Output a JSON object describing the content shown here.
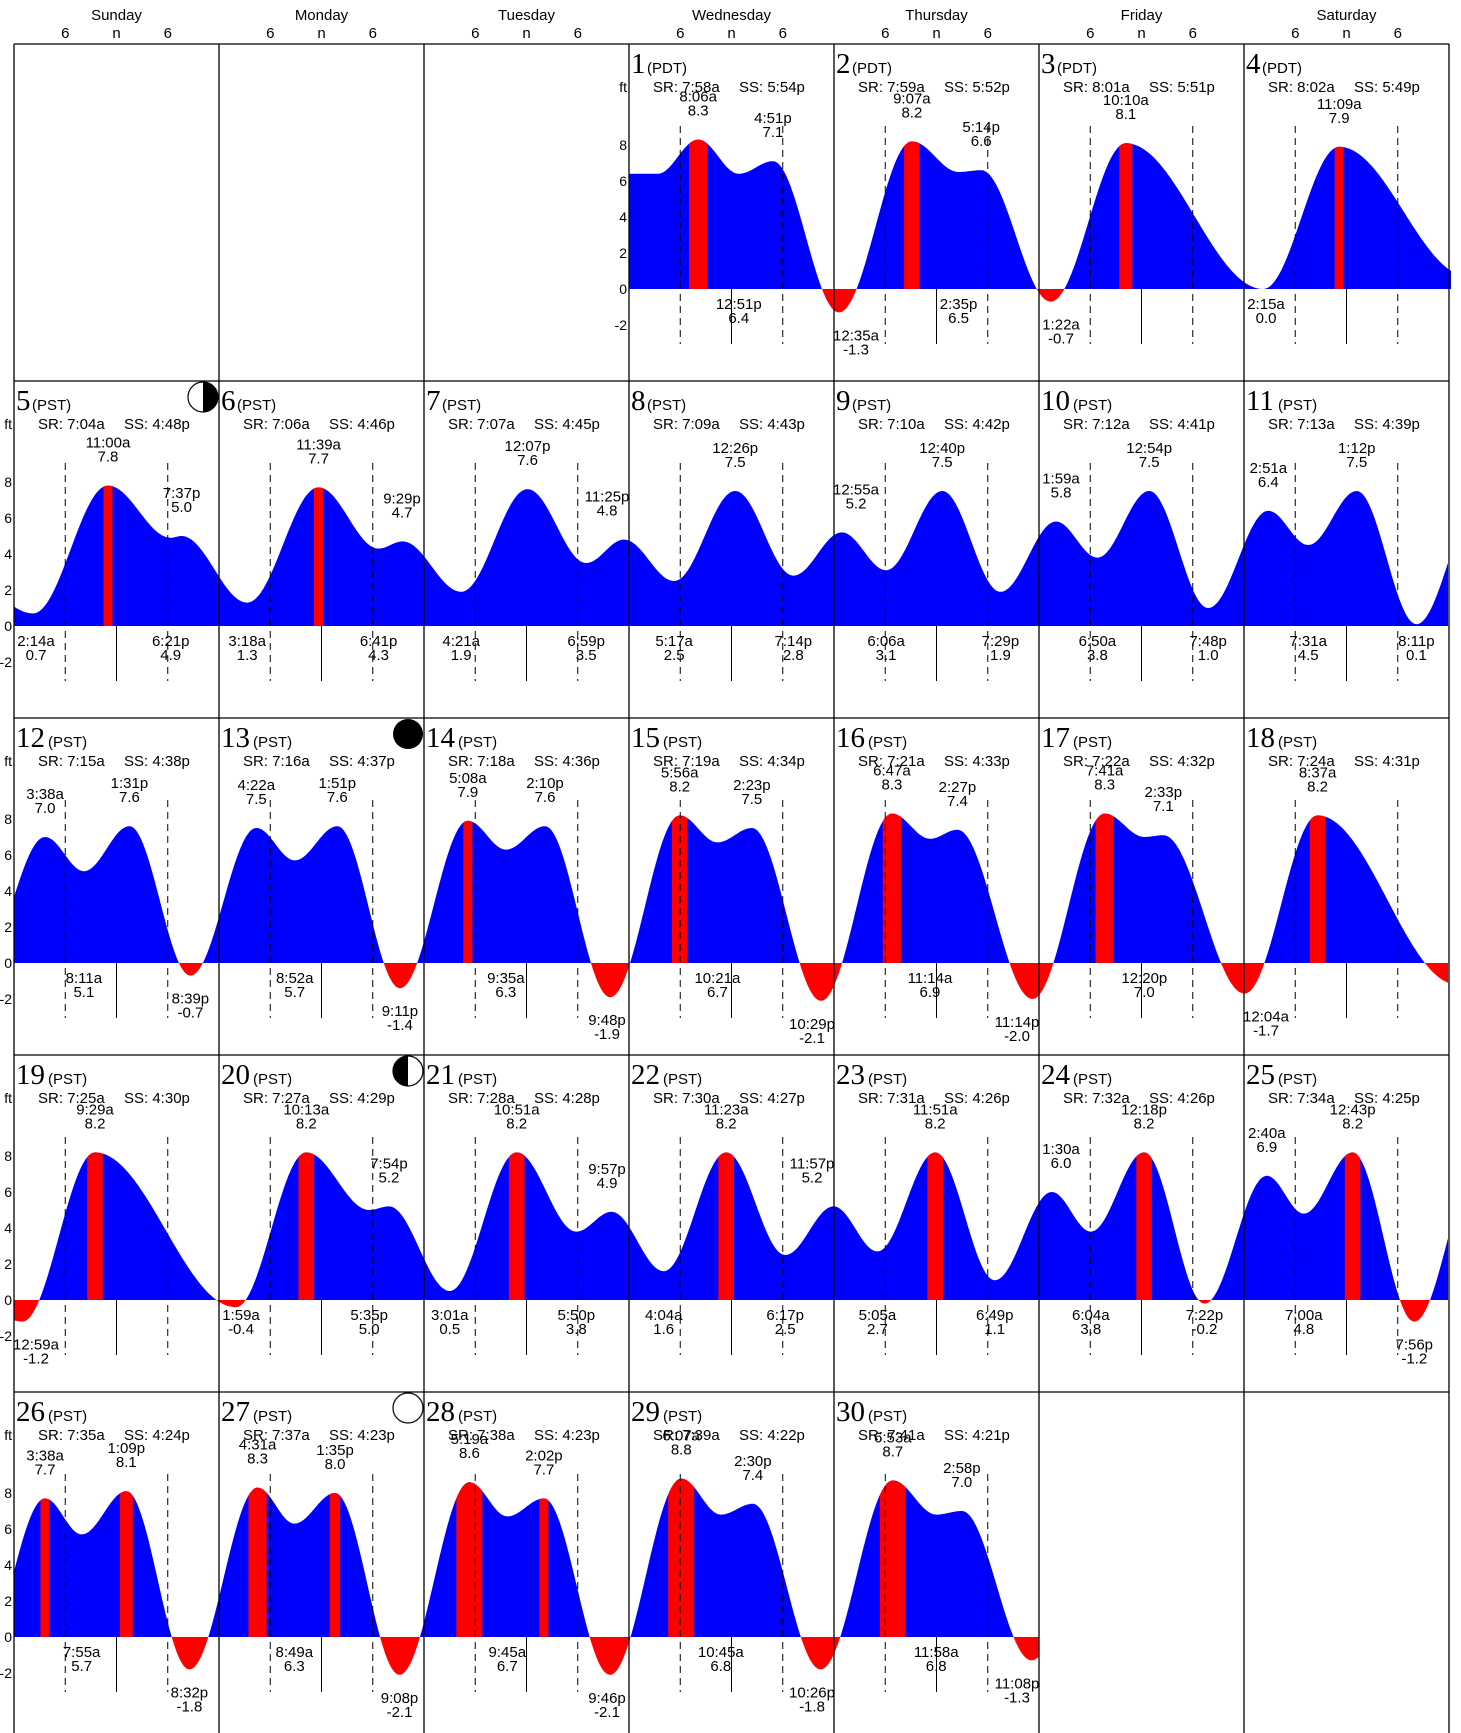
{
  "page": {
    "background": "#ffffff"
  },
  "colors": {
    "high_band": "#ff0000",
    "tide_fill": "#0000ff",
    "negative_fill": "#ff0000",
    "grid": "#000000"
  },
  "header": {
    "days": [
      "Sunday",
      "Monday",
      "Tuesday",
      "Wednesday",
      "Thursday",
      "Friday",
      "Saturday"
    ],
    "tick_labels": [
      "6",
      "n",
      "6"
    ]
  },
  "axis": {
    "unit": "ft",
    "ticks": [
      "8",
      "6",
      "4",
      "2",
      "0",
      "-2"
    ]
  },
  "chart_data": {
    "type": "area",
    "ylim": [
      -2.5,
      9
    ],
    "x_unit": "hours",
    "y_unit": "ft",
    "first_weekday_index": 3,
    "days": [
      {
        "day": "1",
        "tz": "(PDT)",
        "sr": "SR: 7:58a",
        "ss": "SS: 5:54p",
        "highs": [
          {
            "time": "8:06a",
            "height": "8.3"
          },
          {
            "time": "4:51p",
            "height": "7.1"
          }
        ],
        "lows": [
          {
            "time": "12:51p",
            "height": "6.4"
          }
        ]
      },
      {
        "day": "2",
        "tz": "(PDT)",
        "sr": "SR: 7:59a",
        "ss": "SS: 5:52p",
        "highs": [
          {
            "time": "9:07a",
            "height": "8.2"
          },
          {
            "time": "5:14p",
            "height": "6.6"
          }
        ],
        "lows": [
          {
            "time": "12:35a",
            "height": "-1.3"
          },
          {
            "time": "2:35p",
            "height": "6.5"
          }
        ]
      },
      {
        "day": "3",
        "tz": "(PDT)",
        "sr": "SR: 8:01a",
        "ss": "SS: 5:51p",
        "highs": [
          {
            "time": "10:10a",
            "height": "8.1"
          }
        ],
        "lows": [
          {
            "time": "1:22a",
            "height": "-0.7"
          }
        ]
      },
      {
        "day": "4",
        "tz": "(PDT)",
        "sr": "SR: 8:02a",
        "ss": "SS: 5:49p",
        "highs": [
          {
            "time": "11:09a",
            "height": "7.9"
          }
        ],
        "lows": [
          {
            "time": "2:15a",
            "height": "0.0"
          }
        ]
      },
      {
        "day": "5",
        "tz": "(PST)",
        "sr": "SR: 7:04a",
        "ss": "SS: 4:48p",
        "moon": "first-quarter",
        "highs": [
          {
            "time": "11:00a",
            "height": "7.8"
          },
          {
            "time": "7:37p",
            "height": "5.0"
          }
        ],
        "lows": [
          {
            "time": "2:14a",
            "height": "0.7"
          },
          {
            "time": "6:21p",
            "height": "4.9"
          }
        ]
      },
      {
        "day": "6",
        "tz": "(PST)",
        "sr": "SR: 7:06a",
        "ss": "SS: 4:46p",
        "highs": [
          {
            "time": "11:39a",
            "height": "7.7"
          },
          {
            "time": "9:29p",
            "height": "4.7"
          }
        ],
        "lows": [
          {
            "time": "3:18a",
            "height": "1.3"
          },
          {
            "time": "6:41p",
            "height": "4.3"
          }
        ]
      },
      {
        "day": "7",
        "tz": "(PST)",
        "sr": "SR: 7:07a",
        "ss": "SS: 4:45p",
        "highs": [
          {
            "time": "12:07p",
            "height": "7.6"
          },
          {
            "time": "11:25p",
            "height": "4.8"
          }
        ],
        "lows": [
          {
            "time": "4:21a",
            "height": "1.9"
          },
          {
            "time": "6:59p",
            "height": "3.5"
          }
        ]
      },
      {
        "day": "8",
        "tz": "(PST)",
        "sr": "SR: 7:09a",
        "ss": "SS: 4:43p",
        "highs": [
          {
            "time": "12:26p",
            "height": "7.5"
          }
        ],
        "lows": [
          {
            "time": "5:17a",
            "height": "2.5"
          },
          {
            "time": "7:14p",
            "height": "2.8"
          }
        ]
      },
      {
        "day": "9",
        "tz": "(PST)",
        "sr": "SR: 7:10a",
        "ss": "SS: 4:42p",
        "highs": [
          {
            "time": "12:55a",
            "height": "5.2"
          },
          {
            "time": "12:40p",
            "height": "7.5"
          }
        ],
        "lows": [
          {
            "time": "6:06a",
            "height": "3.1"
          },
          {
            "time": "7:29p",
            "height": "1.9"
          }
        ]
      },
      {
        "day": "10",
        "tz": "(PST)",
        "sr": "SR: 7:12a",
        "ss": "SS: 4:41p",
        "highs": [
          {
            "time": "1:59a",
            "height": "5.8"
          },
          {
            "time": "12:54p",
            "height": "7.5"
          }
        ],
        "lows": [
          {
            "time": "6:50a",
            "height": "3.8"
          },
          {
            "time": "7:48p",
            "height": "1.0"
          }
        ]
      },
      {
        "day": "11",
        "tz": "(PST)",
        "sr": "SR: 7:13a",
        "ss": "SS: 4:39p",
        "highs": [
          {
            "time": "2:51a",
            "height": "6.4"
          },
          {
            "time": "1:12p",
            "height": "7.5"
          }
        ],
        "lows": [
          {
            "time": "7:31a",
            "height": "4.5"
          },
          {
            "time": "8:11p",
            "height": "0.1"
          }
        ]
      },
      {
        "day": "12",
        "tz": "(PST)",
        "sr": "SR: 7:15a",
        "ss": "SS: 4:38p",
        "highs": [
          {
            "time": "3:38a",
            "height": "7.0"
          },
          {
            "time": "1:31p",
            "height": "7.6"
          }
        ],
        "lows": [
          {
            "time": "8:11a",
            "height": "5.1"
          },
          {
            "time": "8:39p",
            "height": "-0.7"
          }
        ]
      },
      {
        "day": "13",
        "tz": "(PST)",
        "sr": "SR: 7:16a",
        "ss": "SS: 4:37p",
        "moon": "new",
        "highs": [
          {
            "time": "4:22a",
            "height": "7.5"
          },
          {
            "time": "1:51p",
            "height": "7.6"
          }
        ],
        "lows": [
          {
            "time": "8:52a",
            "height": "5.7"
          },
          {
            "time": "9:11p",
            "height": "-1.4"
          }
        ]
      },
      {
        "day": "14",
        "tz": "(PST)",
        "sr": "SR: 7:18a",
        "ss": "SS: 4:36p",
        "highs": [
          {
            "time": "5:08a",
            "height": "7.9"
          },
          {
            "time": "2:10p",
            "height": "7.6"
          }
        ],
        "lows": [
          {
            "time": "9:35a",
            "height": "6.3"
          },
          {
            "time": "9:48p",
            "height": "-1.9"
          }
        ]
      },
      {
        "day": "15",
        "tz": "(PST)",
        "sr": "SR: 7:19a",
        "ss": "SS: 4:34p",
        "highs": [
          {
            "time": "5:56a",
            "height": "8.2"
          },
          {
            "time": "2:23p",
            "height": "7.5"
          }
        ],
        "lows": [
          {
            "time": "10:21a",
            "height": "6.7"
          },
          {
            "time": "10:29p",
            "height": "-2.1"
          }
        ]
      },
      {
        "day": "16",
        "tz": "(PST)",
        "sr": "SR: 7:21a",
        "ss": "SS: 4:33p",
        "highs": [
          {
            "time": "6:47a",
            "height": "8.3"
          },
          {
            "time": "2:27p",
            "height": "7.4"
          }
        ],
        "lows": [
          {
            "time": "11:14a",
            "height": "6.9"
          },
          {
            "time": "11:14p",
            "height": "-2.0"
          }
        ]
      },
      {
        "day": "17",
        "tz": "(PST)",
        "sr": "SR: 7:22a",
        "ss": "SS: 4:32p",
        "highs": [
          {
            "time": "7:41a",
            "height": "8.3"
          },
          {
            "time": "2:33p",
            "height": "7.1"
          }
        ],
        "lows": [
          {
            "time": "12:20p",
            "height": "7.0"
          }
        ]
      },
      {
        "day": "18",
        "tz": "(PST)",
        "sr": "SR: 7:24a",
        "ss": "SS: 4:31p",
        "highs": [
          {
            "time": "8:37a",
            "height": "8.2"
          }
        ],
        "lows": [
          {
            "time": "12:04a",
            "height": "-1.7"
          }
        ]
      },
      {
        "day": "19",
        "tz": "(PST)",
        "sr": "SR: 7:25a",
        "ss": "SS: 4:30p",
        "highs": [
          {
            "time": "9:29a",
            "height": "8.2"
          }
        ],
        "lows": [
          {
            "time": "12:59a",
            "height": "-1.2"
          }
        ]
      },
      {
        "day": "20",
        "tz": "(PST)",
        "sr": "SR: 7:27a",
        "ss": "SS: 4:29p",
        "moon": "last-quarter",
        "highs": [
          {
            "time": "10:13a",
            "height": "8.2"
          },
          {
            "time": "7:54p",
            "height": "5.2"
          }
        ],
        "lows": [
          {
            "time": "1:59a",
            "height": "-0.4"
          },
          {
            "time": "5:35p",
            "height": "5.0"
          }
        ]
      },
      {
        "day": "21",
        "tz": "(PST)",
        "sr": "SR: 7:28a",
        "ss": "SS: 4:28p",
        "highs": [
          {
            "time": "10:51a",
            "height": "8.2"
          },
          {
            "time": "9:57p",
            "height": "4.9"
          }
        ],
        "lows": [
          {
            "time": "3:01a",
            "height": "0.5"
          },
          {
            "time": "5:50p",
            "height": "3.8"
          }
        ]
      },
      {
        "day": "22",
        "tz": "(PST)",
        "sr": "SR: 7:30a",
        "ss": "SS: 4:27p",
        "highs": [
          {
            "time": "11:23a",
            "height": "8.2"
          },
          {
            "time": "11:57p",
            "height": "5.2"
          }
        ],
        "lows": [
          {
            "time": "4:04a",
            "height": "1.6"
          },
          {
            "time": "6:17p",
            "height": "2.5"
          }
        ]
      },
      {
        "day": "23",
        "tz": "(PST)",
        "sr": "SR: 7:31a",
        "ss": "SS: 4:26p",
        "highs": [
          {
            "time": "11:51a",
            "height": "8.2"
          }
        ],
        "lows": [
          {
            "time": "5:05a",
            "height": "2.7"
          },
          {
            "time": "6:49p",
            "height": "1.1"
          }
        ]
      },
      {
        "day": "24",
        "tz": "(PST)",
        "sr": "SR: 7:32a",
        "ss": "SS: 4:26p",
        "highs": [
          {
            "time": "1:30a",
            "height": "6.0"
          },
          {
            "time": "12:18p",
            "height": "8.2"
          }
        ],
        "lows": [
          {
            "time": "6:04a",
            "height": "3.8"
          },
          {
            "time": "7:22p",
            "height": "-0.2"
          }
        ]
      },
      {
        "day": "25",
        "tz": "(PST)",
        "sr": "SR: 7:34a",
        "ss": "SS: 4:25p",
        "highs": [
          {
            "time": "2:40a",
            "height": "6.9"
          },
          {
            "time": "12:43p",
            "height": "8.2"
          }
        ],
        "lows": [
          {
            "time": "7:00a",
            "height": "4.8"
          },
          {
            "time": "7:56p",
            "height": "-1.2"
          }
        ]
      },
      {
        "day": "26",
        "tz": "(PST)",
        "sr": "SR: 7:35a",
        "ss": "SS: 4:24p",
        "highs": [
          {
            "time": "3:38a",
            "height": "7.7"
          },
          {
            "time": "1:09p",
            "height": "8.1"
          }
        ],
        "lows": [
          {
            "time": "7:55a",
            "height": "5.7"
          },
          {
            "time": "8:32p",
            "height": "-1.8"
          }
        ]
      },
      {
        "day": "27",
        "tz": "(PST)",
        "sr": "SR: 7:37a",
        "ss": "SS: 4:23p",
        "moon": "full",
        "highs": [
          {
            "time": "4:31a",
            "height": "8.3"
          },
          {
            "time": "1:35p",
            "height": "8.0"
          }
        ],
        "lows": [
          {
            "time": "8:49a",
            "height": "6.3"
          },
          {
            "time": "9:08p",
            "height": "-2.1"
          }
        ]
      },
      {
        "day": "28",
        "tz": "(PST)",
        "sr": "SR: 7:38a",
        "ss": "SS: 4:23p",
        "highs": [
          {
            "time": "5:19a",
            "height": "8.6"
          },
          {
            "time": "2:02p",
            "height": "7.7"
          }
        ],
        "lows": [
          {
            "time": "9:45a",
            "height": "6.7"
          },
          {
            "time": "9:46p",
            "height": "-2.1"
          }
        ]
      },
      {
        "day": "29",
        "tz": "(PST)",
        "sr": "SR: 7:39a",
        "ss": "SS: 4:22p",
        "highs": [
          {
            "time": "6:07a",
            "height": "8.8"
          },
          {
            "time": "2:30p",
            "height": "7.4"
          }
        ],
        "lows": [
          {
            "time": "10:45a",
            "height": "6.8"
          },
          {
            "time": "10:26p",
            "height": "-1.8"
          }
        ]
      },
      {
        "day": "30",
        "tz": "(PST)",
        "sr": "SR: 7:41a",
        "ss": "SS: 4:21p",
        "highs": [
          {
            "time": "6:53a",
            "height": "8.7"
          },
          {
            "time": "2:58p",
            "height": "7.0"
          }
        ],
        "lows": [
          {
            "time": "11:58a",
            "height": "6.8"
          },
          {
            "time": "11:08p",
            "height": "-1.3"
          }
        ]
      }
    ]
  }
}
